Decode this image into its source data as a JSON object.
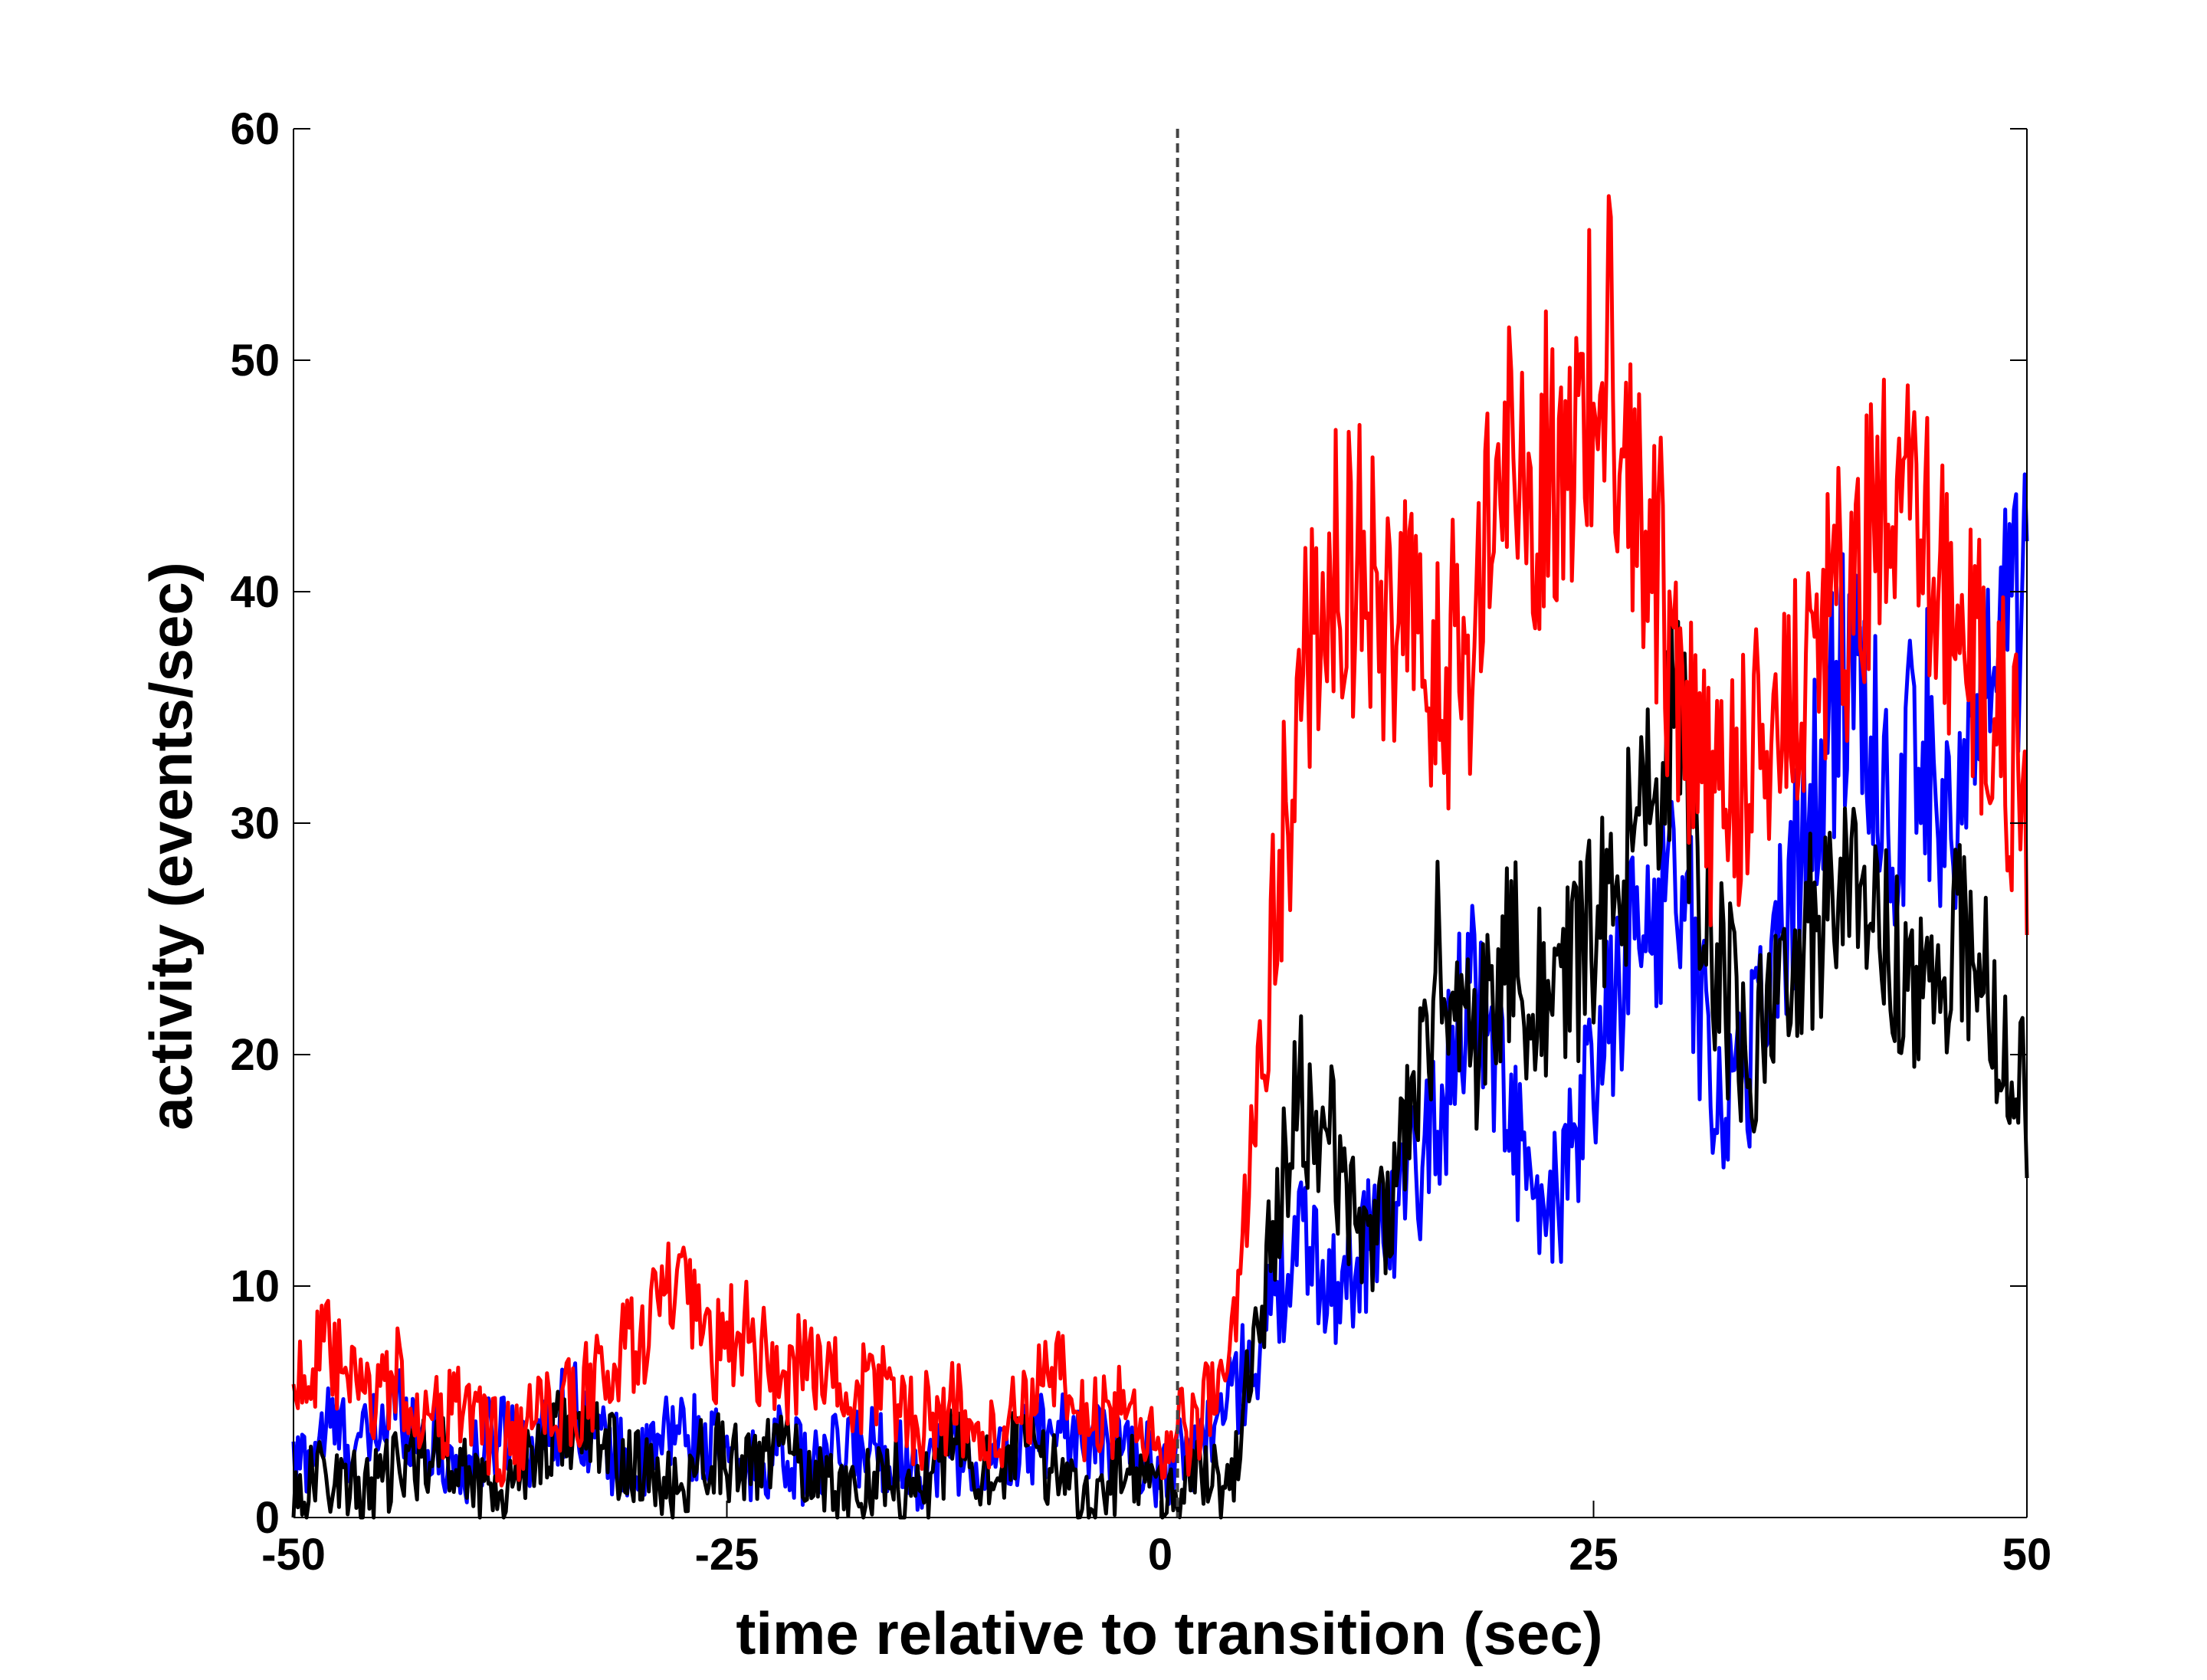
{
  "chart_data": {
    "type": "line",
    "title": "",
    "xlabel": "time relative to transition (sec)",
    "ylabel": "activity (events/sec)",
    "xlim": [
      -50,
      50
    ],
    "ylim": [
      0,
      60
    ],
    "xticks": [
      -50,
      -25,
      0,
      25,
      50
    ],
    "xtick_labels": [
      "-50",
      "-25",
      "0",
      "25",
      "50"
    ],
    "yticks": [
      0,
      10,
      20,
      30,
      40,
      50,
      60
    ],
    "ytick_labels": [
      "0",
      "10",
      "20",
      "30",
      "40",
      "50",
      "60"
    ],
    "grid": false,
    "box": "left-bottom-right",
    "reference_line": {
      "x": 1,
      "style": "dashed",
      "color": "#444444"
    },
    "series": [
      {
        "color": "#0000ff",
        "x": [
          -50,
          -48,
          -46,
          -44,
          -42,
          -40,
          -38,
          -36,
          -34,
          -32,
          -30,
          -28,
          -26,
          -24,
          -22,
          -20,
          -18,
          -16,
          -14,
          -12,
          -10,
          -8,
          -6,
          -4,
          -2,
          0,
          2,
          4,
          6,
          8,
          10,
          12,
          14,
          16,
          18,
          20,
          22,
          24,
          26,
          28,
          30,
          32,
          34,
          36,
          38,
          40,
          42,
          44,
          46,
          48,
          50
        ],
        "values": [
          2,
          4,
          3,
          5,
          3,
          2,
          4,
          3,
          5,
          3,
          2,
          4,
          3,
          2,
          3,
          2,
          3,
          3,
          2,
          3,
          2,
          3,
          4,
          3,
          3,
          2,
          3,
          5,
          8,
          12,
          10,
          12,
          14,
          17,
          24,
          18,
          12,
          16,
          22,
          26,
          28,
          18,
          20,
          26,
          32,
          38,
          30,
          34,
          30,
          36,
          40
        ]
      },
      {
        "color": "#000000",
        "x": [
          -50,
          -48,
          -46,
          -44,
          -42,
          -40,
          -38,
          -36,
          -34,
          -32,
          -30,
          -28,
          -26,
          -24,
          -22,
          -20,
          -18,
          -16,
          -14,
          -12,
          -10,
          -8,
          -6,
          -4,
          -2,
          0,
          2,
          4,
          6,
          8,
          10,
          12,
          14,
          16,
          18,
          20,
          22,
          24,
          26,
          28,
          30,
          32,
          34,
          36,
          38,
          40,
          42,
          44,
          46,
          48,
          50
        ],
        "values": [
          1,
          2,
          1,
          2,
          3,
          2,
          1,
          3,
          4,
          3,
          2,
          1,
          3,
          2,
          3,
          2,
          1,
          2,
          1,
          3,
          2,
          3,
          2,
          1,
          2,
          1,
          2,
          1,
          10,
          18,
          16,
          12,
          15,
          24,
          20,
          25,
          22,
          24,
          26,
          32,
          34,
          24,
          20,
          22,
          26,
          30,
          24,
          22,
          26,
          22,
          18
        ]
      },
      {
        "color": "#ff0000",
        "x": [
          -50,
          -48,
          -46,
          -44,
          -42,
          -40,
          -38,
          -36,
          -34,
          -32,
          -30,
          -28,
          -26,
          -24,
          -22,
          -20,
          -18,
          -16,
          -14,
          -12,
          -10,
          -8,
          -6,
          -4,
          -2,
          0,
          2,
          4,
          6,
          8,
          10,
          12,
          14,
          16,
          18,
          20,
          22,
          24,
          26,
          28,
          30,
          32,
          34,
          36,
          38,
          40,
          42,
          44,
          46,
          48,
          50
        ],
        "values": [
          6,
          7,
          5,
          6,
          4,
          5,
          3,
          4,
          5,
          6,
          8,
          10,
          7,
          8,
          6,
          7,
          5,
          6,
          4,
          5,
          3,
          5,
          6,
          4,
          5,
          3,
          4,
          6,
          22,
          35,
          42,
          40,
          38,
          36,
          38,
          46,
          45,
          47,
          50,
          44,
          35,
          30,
          33,
          35,
          38,
          40,
          43,
          42,
          38,
          36,
          30
        ]
      }
    ]
  }
}
